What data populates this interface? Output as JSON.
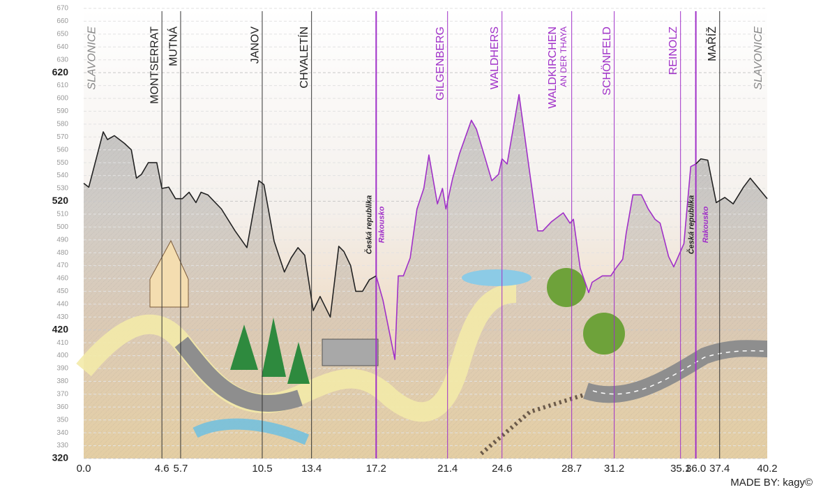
{
  "chart_data": {
    "type": "line",
    "xlim": [
      0,
      40.2
    ],
    "ylim": [
      320,
      670
    ],
    "xticks": [
      {
        "value": 0,
        "label": "0.0"
      },
      4.6,
      5.7,
      10.5,
      13.4,
      17.2,
      21.4,
      24.6,
      28.7,
      31.2,
      35.1,
      {
        "value": 36,
        "label": "36.0"
      },
      37.4,
      40.2
    ],
    "yticks": [
      320,
      330,
      340,
      350,
      360,
      370,
      380,
      390,
      400,
      410,
      420,
      430,
      440,
      450,
      460,
      470,
      480,
      490,
      500,
      510,
      520,
      530,
      540,
      550,
      560,
      570,
      580,
      590,
      600,
      610,
      620,
      630,
      640,
      650,
      660,
      670
    ],
    "grid": true,
    "series": [
      {
        "color": "#222222",
        "x": [
          0,
          0.3,
          1.15,
          1.4,
          1.8,
          2.4,
          2.8,
          3.1,
          3.4,
          3.8,
          4.3,
          4.6,
          5.0,
          5.4,
          5.8,
          6.2,
          6.6,
          6.9,
          7.3,
          8.1,
          8.9,
          9.6,
          10.3,
          10.6,
          11.2,
          11.8,
          12.2,
          12.6,
          13.0,
          13.5,
          13.9,
          14.5,
          15.0,
          15.3,
          15.7,
          16.0,
          16.4,
          16.8,
          17.2
        ],
        "values": [
          534,
          531,
          574,
          568,
          571,
          565,
          560,
          538,
          541,
          550,
          550,
          530,
          531,
          522,
          522,
          527,
          519,
          527,
          525,
          514,
          497,
          484,
          536,
          533,
          489,
          465,
          476,
          484,
          478,
          435,
          446,
          430,
          485,
          481,
          470,
          450,
          450,
          459,
          462
        ]
      },
      {
        "color": "#a030c8",
        "x": [
          17.2,
          17.6,
          17.8,
          18.3,
          18.5,
          18.8,
          19.2,
          19.6,
          20.0,
          20.3,
          20.8,
          21.1,
          21.3,
          21.7,
          22.1,
          22.8,
          23.1,
          23.6,
          24.0,
          24.4,
          24.6,
          24.9,
          25.6,
          26.7,
          27.0,
          27.5,
          28.2,
          28.6,
          28.8,
          29.2,
          29.7,
          29.9,
          30.5,
          31.0,
          31.3,
          31.7,
          31.9,
          32.3,
          32.8,
          33.2,
          33.6,
          33.9,
          34.4,
          34.7,
          35.3,
          35.7,
          36.0
        ],
        "values": [
          462,
          443,
          430,
          397,
          462,
          462,
          476,
          514,
          530,
          556,
          518,
          530,
          514,
          538,
          557,
          583,
          576,
          554,
          536,
          541,
          553,
          549,
          603,
          497,
          497,
          504,
          511,
          503,
          506,
          468,
          449,
          457,
          462,
          462,
          468,
          475,
          495,
          525,
          525,
          514,
          506,
          503,
          477,
          469,
          487,
          547,
          549
        ]
      },
      {
        "color": "#222222",
        "x": [
          36.0,
          36.3,
          36.7,
          37.2,
          37.7,
          38.2,
          38.8,
          39.2,
          39.7,
          40.2
        ],
        "values": [
          549,
          553,
          552,
          519,
          523,
          518,
          531,
          538,
          530,
          522
        ]
      }
    ],
    "annotations": [
      {
        "text": "SLAVONICE",
        "x": 0.5,
        "color": "#888888",
        "style": "italic"
      },
      {
        "text": "MONTSERRAT",
        "x": 4.2,
        "color": "#222222"
      },
      {
        "text": "MUTNÁ",
        "x": 5.3,
        "color": "#222222"
      },
      {
        "text": "JANOV",
        "x": 10.1,
        "color": "#222222"
      },
      {
        "text": "CHVALETÍN",
        "x": 13.0,
        "color": "#222222"
      },
      {
        "text": "GILGENBERG",
        "x": 21.0,
        "color": "#a030c8"
      },
      {
        "text": "WALDHERS",
        "x": 24.2,
        "color": "#a030c8"
      },
      {
        "text": "WALDKIRCHEN",
        "subtext": "AN DER THAYA",
        "x": 27.6,
        "color": "#a030c8"
      },
      {
        "text": "SCHÖNFELD",
        "x": 30.8,
        "color": "#a030c8"
      },
      {
        "text": "REINOLZ",
        "x": 34.7,
        "color": "#a030c8"
      },
      {
        "text": "MAŘÍŽ",
        "x": 37.0,
        "color": "#222222"
      },
      {
        "text": "SLAVONICE",
        "x": 39.7,
        "color": "#888888",
        "style": "italic"
      }
    ],
    "country_labels": [
      {
        "text": "Česká republika",
        "x": 16.8,
        "color": "#222222"
      },
      {
        "text": "Rakousko",
        "x": 17.55,
        "color": "#a030c8"
      },
      {
        "text": "Česká republika",
        "x": 35.75,
        "color": "#222222"
      },
      {
        "text": "Rakousko",
        "x": 36.6,
        "color": "#a030c8"
      }
    ],
    "credit": "MADE BY: kagy©"
  }
}
